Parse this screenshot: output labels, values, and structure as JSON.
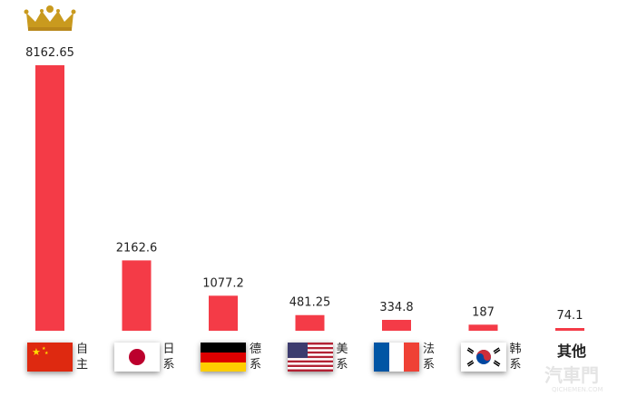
{
  "chart_data": {
    "type": "bar",
    "categories": [
      "自主",
      "日系",
      "德系",
      "美系",
      "法系",
      "韩系",
      "其他"
    ],
    "values": [
      8162.65,
      2162.6,
      1077.2,
      481.25,
      334.8,
      187,
      74.1
    ],
    "data_labels": [
      "8162.65",
      "2162.6",
      "1077.2",
      "481.25",
      "334.8",
      "187",
      "74.1"
    ],
    "bar_color": "#f43b47",
    "grid": false,
    "legend": "none",
    "top_marker": "crown-icon"
  },
  "flags": [
    "china-flag-icon",
    "japan-flag-icon",
    "germany-flag-icon",
    "usa-flag-icon",
    "france-flag-icon",
    "korea-flag-icon",
    ""
  ],
  "watermark": {
    "brand": "汽車門",
    "site": "QICHEMEN.COM"
  }
}
